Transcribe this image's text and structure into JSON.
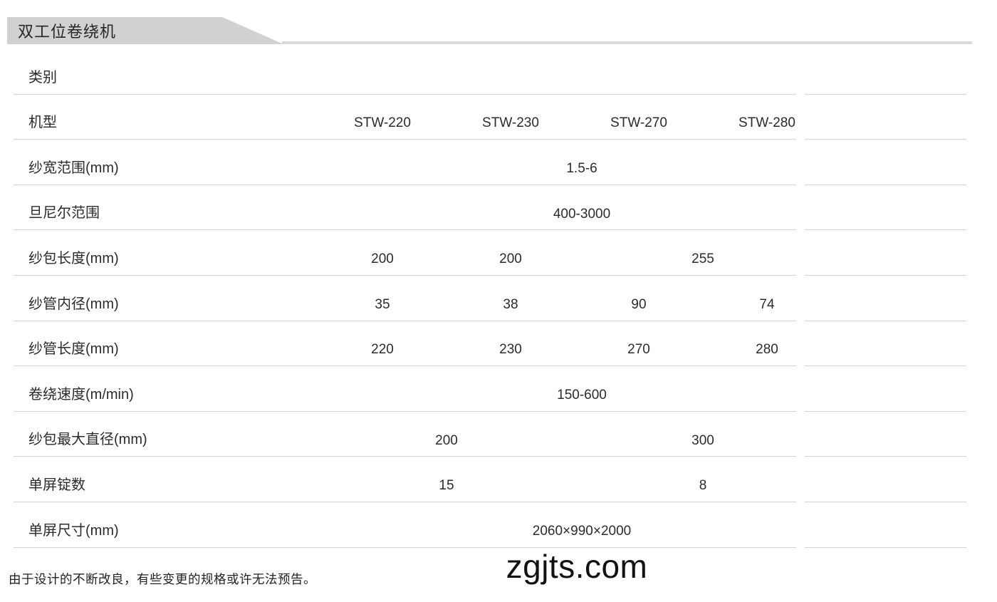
{
  "page": {
    "banner_title": "双工位卷绕机",
    "footnote": "由于设计的不断改良，有些变更的规格或许无法预告。",
    "watermark": "zgjts.com"
  },
  "colors": {
    "banner_gray": "#d1d1d1",
    "divider_gray": "#d4d4d4",
    "text_dark": "#2b2b2b"
  },
  "table": {
    "model_columns": [
      "STW-220",
      "STW-230",
      "STW-270",
      "STW-280"
    ],
    "rows": [
      {
        "label": "类别",
        "cells": []
      },
      {
        "label": "机型",
        "cells": [
          {
            "text": "STW-220"
          },
          {
            "text": "STW-230"
          },
          {
            "text": "STW-270"
          },
          {
            "text": "STW-280"
          }
        ]
      },
      {
        "label": "纱宽范围(mm)",
        "cells": [
          {
            "text": "1.5-6"
          }
        ]
      },
      {
        "label": "旦尼尔范围",
        "cells": [
          {
            "text": "400-3000"
          }
        ]
      },
      {
        "label": "纱包长度(mm)",
        "cells": [
          {
            "text": "200"
          },
          {
            "text": "200"
          },
          {
            "text": "255"
          }
        ]
      },
      {
        "label": "纱管内径(mm)",
        "cells": [
          {
            "text": "35"
          },
          {
            "text": "38"
          },
          {
            "text": "90"
          },
          {
            "text": "74"
          }
        ]
      },
      {
        "label": "纱管长度(mm)",
        "cells": [
          {
            "text": "220"
          },
          {
            "text": "230"
          },
          {
            "text": "270"
          },
          {
            "text": "280"
          }
        ]
      },
      {
        "label": "卷绕速度(m/min)",
        "cells": [
          {
            "text": "150-600"
          }
        ]
      },
      {
        "label": "纱包最大直径(mm)",
        "cells": [
          {
            "text": "200"
          },
          {
            "text": "300"
          }
        ]
      },
      {
        "label": "单屏锭数",
        "cells": [
          {
            "text": "15"
          },
          {
            "text": "8"
          }
        ]
      },
      {
        "label": "单屏尺寸(mm)",
        "cells": [
          {
            "text": "2060×990×2000"
          }
        ]
      }
    ]
  }
}
